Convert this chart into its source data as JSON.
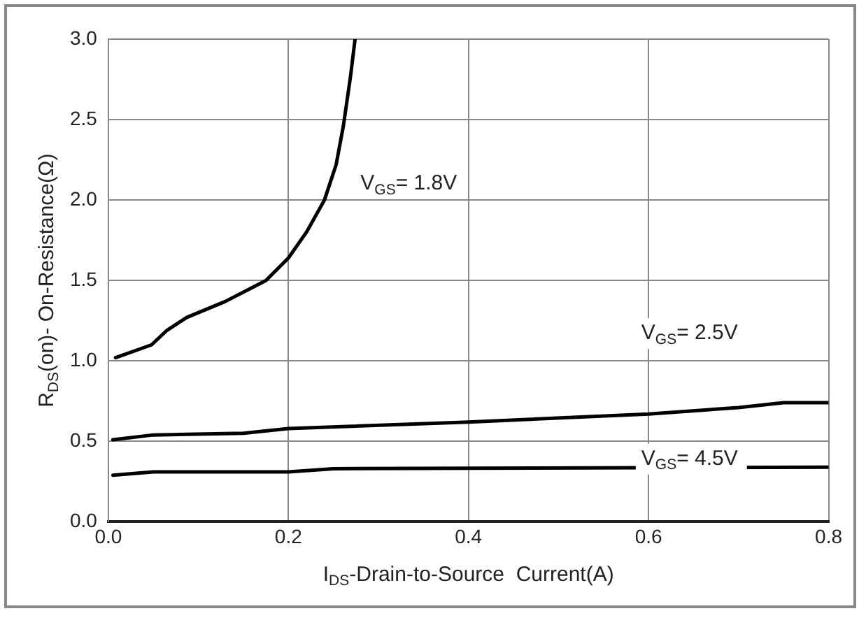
{
  "chart_data": {
    "type": "line",
    "xlabel": "I$_{DS}$-Drain-to-Source  Current(A)",
    "ylabel": "R$_{DS}$(on)- On-Resistance(Ω)",
    "xlim": [
      0,
      0.8
    ],
    "xticks": [
      {
        "value": 0,
        "label": "0.0"
      },
      0.2,
      0.4,
      0.6,
      0.8
    ],
    "ylim": [
      0,
      3
    ],
    "yticks": [
      {
        "value": 0,
        "label": "0.0"
      },
      0.5,
      {
        "value": 1,
        "label": "1.0"
      },
      1.5,
      {
        "value": 2,
        "label": "2.0"
      },
      2.5,
      {
        "value": 3,
        "label": "3.0"
      }
    ],
    "grid": true,
    "legend": false,
    "marker": "none",
    "line_style": "solid",
    "series": [
      {
        "name": "V$_{GS}$= 1.8V",
        "color": "#000000",
        "x": [
          0.008,
          0.048,
          0.065,
          0.087,
          0.13,
          0.175,
          0.2,
          0.22,
          0.24,
          0.253,
          0.261,
          0.269,
          0.274
        ],
        "values": [
          1.02,
          1.1,
          1.19,
          1.27,
          1.37,
          1.5,
          1.64,
          1.8,
          2.0,
          2.22,
          2.46,
          2.77,
          3.0
        ]
      },
      {
        "name": "V$_{GS}$= 2.5V",
        "color": "#000000",
        "x": [
          0.005,
          0.05,
          0.15,
          0.2,
          0.4,
          0.6,
          0.7,
          0.75,
          0.8
        ],
        "values": [
          0.51,
          0.54,
          0.55,
          0.58,
          0.62,
          0.67,
          0.71,
          0.74,
          0.74
        ]
      },
      {
        "name": "V$_{GS}$= 4.5V",
        "color": "#000000",
        "x": [
          0.005,
          0.05,
          0.2,
          0.25,
          0.8
        ],
        "values": [
          0.29,
          0.31,
          0.31,
          0.33,
          0.34
        ]
      }
    ]
  }
}
